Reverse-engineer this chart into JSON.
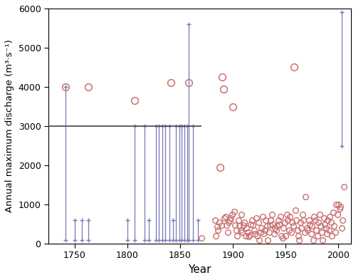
{
  "xlabel": "Year",
  "ylabel": "Annual maximum discharge (m³·s⁻¹)",
  "xlim": [
    1725,
    2012
  ],
  "ylim": [
    0,
    6000
  ],
  "yticks": [
    0,
    1000,
    2000,
    3000,
    4000,
    5000,
    6000
  ],
  "xticks": [
    1750,
    1800,
    1850,
    1900,
    1950,
    2000
  ],
  "perception_threshold": 3000,
  "threshold_xstart": 1725,
  "threshold_xend": 1870,
  "circle_color": "#c87070",
  "interval_color": "#7878bb",
  "circles_high": [
    [
      1741,
      4000
    ],
    [
      1763,
      4000
    ],
    [
      1807,
      3650
    ],
    [
      1841,
      4100
    ],
    [
      1858,
      4100
    ],
    [
      1888,
      1950
    ],
    [
      1890,
      4250
    ],
    [
      1891,
      3950
    ],
    [
      1900,
      3500
    ],
    [
      1958,
      4500
    ]
  ],
  "circles_low": [
    [
      1883,
      600
    ],
    [
      1884,
      200
    ],
    [
      1885,
      430
    ],
    [
      1886,
      350
    ],
    [
      1887,
      550
    ],
    [
      1889,
      480
    ],
    [
      1892,
      650
    ],
    [
      1893,
      700
    ],
    [
      1894,
      480
    ],
    [
      1895,
      300
    ],
    [
      1896,
      550
    ],
    [
      1897,
      600
    ],
    [
      1898,
      650
    ],
    [
      1899,
      750
    ],
    [
      1901,
      820
    ],
    [
      1902,
      480
    ],
    [
      1903,
      350
    ],
    [
      1904,
      200
    ],
    [
      1905,
      600
    ],
    [
      1906,
      450
    ],
    [
      1907,
      350
    ],
    [
      1908,
      750
    ],
    [
      1909,
      300
    ],
    [
      1910,
      480
    ],
    [
      1911,
      550
    ],
    [
      1912,
      200
    ],
    [
      1913,
      400
    ],
    [
      1914,
      300
    ],
    [
      1915,
      180
    ],
    [
      1916,
      220
    ],
    [
      1917,
      500
    ],
    [
      1918,
      600
    ],
    [
      1919,
      480
    ],
    [
      1920,
      350
    ],
    [
      1921,
      250
    ],
    [
      1922,
      650
    ],
    [
      1923,
      200
    ],
    [
      1924,
      550
    ],
    [
      1925,
      100
    ],
    [
      1926,
      300
    ],
    [
      1927,
      400
    ],
    [
      1928,
      700
    ],
    [
      1929,
      250
    ],
    [
      1930,
      350
    ],
    [
      1931,
      600
    ],
    [
      1932,
      450
    ],
    [
      1933,
      100
    ],
    [
      1934,
      300
    ],
    [
      1935,
      480
    ],
    [
      1936,
      600
    ],
    [
      1937,
      750
    ],
    [
      1938,
      500
    ],
    [
      1939,
      250
    ],
    [
      1940,
      400
    ],
    [
      1941,
      350
    ],
    [
      1942,
      450
    ],
    [
      1943,
      600
    ],
    [
      1944,
      500
    ],
    [
      1945,
      700
    ],
    [
      1946,
      200
    ],
    [
      1947,
      150
    ],
    [
      1948,
      400
    ],
    [
      1949,
      550
    ],
    [
      1950,
      200
    ],
    [
      1951,
      750
    ],
    [
      1952,
      600
    ],
    [
      1953,
      350
    ],
    [
      1954,
      700
    ],
    [
      1955,
      300
    ],
    [
      1956,
      550
    ],
    [
      1957,
      450
    ],
    [
      1959,
      850
    ],
    [
      1960,
      600
    ],
    [
      1961,
      350
    ],
    [
      1962,
      200
    ],
    [
      1963,
      100
    ],
    [
      1964,
      550
    ],
    [
      1965,
      400
    ],
    [
      1966,
      750
    ],
    [
      1967,
      600
    ],
    [
      1968,
      300
    ],
    [
      1969,
      1200
    ],
    [
      1970,
      400
    ],
    [
      1971,
      350
    ],
    [
      1972,
      600
    ],
    [
      1973,
      500
    ],
    [
      1974,
      250
    ],
    [
      1975,
      450
    ],
    [
      1976,
      100
    ],
    [
      1977,
      700
    ],
    [
      1978,
      600
    ],
    [
      1979,
      350
    ],
    [
      1980,
      200
    ],
    [
      1981,
      550
    ],
    [
      1982,
      750
    ],
    [
      1983,
      450
    ],
    [
      1984,
      300
    ],
    [
      1985,
      100
    ],
    [
      1986,
      650
    ],
    [
      1987,
      500
    ],
    [
      1988,
      400
    ],
    [
      1989,
      250
    ],
    [
      1990,
      600
    ],
    [
      1991,
      350
    ],
    [
      1992,
      700
    ],
    [
      1993,
      550
    ],
    [
      1994,
      200
    ],
    [
      1995,
      800
    ],
    [
      1996,
      450
    ],
    [
      1997,
      300
    ],
    [
      1998,
      1000
    ],
    [
      1999,
      750
    ],
    [
      2000,
      1000
    ],
    [
      2001,
      900
    ],
    [
      2002,
      950
    ],
    [
      2003,
      400
    ],
    [
      2004,
      600
    ],
    [
      2005,
      1450
    ],
    [
      1870,
      150
    ]
  ],
  "intervals": [
    {
      "year": 1741,
      "y_low": 100,
      "y_high": 4000
    },
    {
      "year": 1750,
      "y_low": 100,
      "y_high": 600
    },
    {
      "year": 1757,
      "y_low": 100,
      "y_high": 600
    },
    {
      "year": 1763,
      "y_low": 100,
      "y_high": 600
    },
    {
      "year": 1800,
      "y_low": 100,
      "y_high": 600
    },
    {
      "year": 1807,
      "y_low": 100,
      "y_high": 3000
    },
    {
      "year": 1816,
      "y_low": 100,
      "y_high": 3000
    },
    {
      "year": 1820,
      "y_low": 100,
      "y_high": 600
    },
    {
      "year": 1827,
      "y_low": 100,
      "y_high": 3000
    },
    {
      "year": 1830,
      "y_low": 100,
      "y_high": 3000
    },
    {
      "year": 1833,
      "y_low": 100,
      "y_high": 3000
    },
    {
      "year": 1836,
      "y_low": 100,
      "y_high": 3000
    },
    {
      "year": 1840,
      "y_low": 100,
      "y_high": 3000
    },
    {
      "year": 1843,
      "y_low": 100,
      "y_high": 600
    },
    {
      "year": 1846,
      "y_low": 100,
      "y_high": 3000
    },
    {
      "year": 1849,
      "y_low": 100,
      "y_high": 3000
    },
    {
      "year": 1851,
      "y_low": 100,
      "y_high": 3000
    },
    {
      "year": 1854,
      "y_low": 100,
      "y_high": 3000
    },
    {
      "year": 1857,
      "y_low": 100,
      "y_high": 3000
    },
    {
      "year": 1858,
      "y_low": 100,
      "y_high": 5600
    },
    {
      "year": 1862,
      "y_low": 100,
      "y_high": 3000
    },
    {
      "year": 1867,
      "y_low": 100,
      "y_high": 600
    },
    {
      "year": 2003,
      "y_low": 2500,
      "y_high": 5900
    }
  ]
}
